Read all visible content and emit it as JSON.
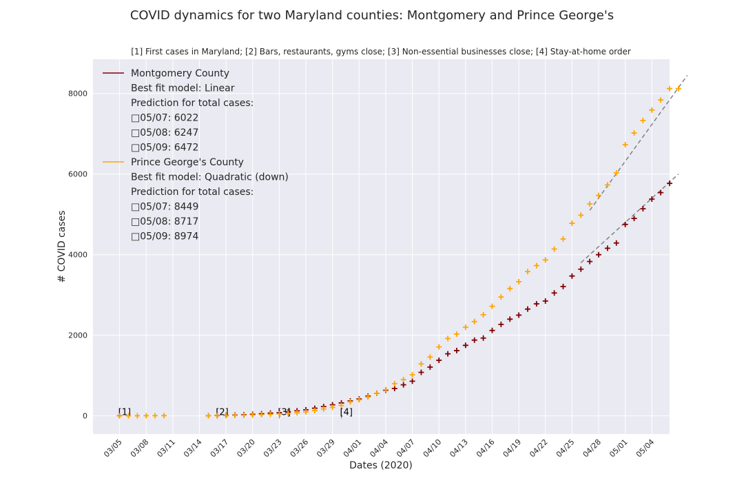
{
  "chart_data": {
    "type": "scatter",
    "title": "COVID dynamics for two Maryland counties: Montgomery and Prince George's",
    "subtitle": "[1] First cases in Maryland; [2] Bars, restaurants, gyms close; [3] Non-essential businesses close; [4] Stay-at-home order",
    "xlabel": "Dates (2020)",
    "ylabel": "# COVID cases",
    "x_ticks": [
      "03/05",
      "03/08",
      "03/11",
      "03/14",
      "03/17",
      "03/20",
      "03/23",
      "03/26",
      "03/29",
      "04/01",
      "04/04",
      "04/07",
      "04/10",
      "04/13",
      "04/16",
      "04/19",
      "04/22",
      "04/25",
      "04/28",
      "05/01",
      "05/04"
    ],
    "y_ticks": [
      0,
      2000,
      4000,
      6000,
      8000
    ],
    "xlim_day": [
      -3,
      62
    ],
    "ylim": [
      -450,
      8850
    ],
    "grid": true,
    "legend_position": "upper-left",
    "legend": [
      {
        "series": "Montgomery County",
        "lines": [
          "Best fit model: Linear",
          "Prediction for total cases:",
          "□05/07: 6022",
          "□05/08: 6247",
          "□05/09: 6472"
        ]
      },
      {
        "series": "Prince George's County",
        "lines": [
          "Best fit model: Quadratic (down)",
          "Prediction for total cases:",
          "□05/07: 8449",
          "□05/08: 8717",
          "□05/09: 8974"
        ]
      }
    ],
    "events": [
      {
        "label": "[1]",
        "date": "03/05",
        "y": 0
      },
      {
        "label": "[2]",
        "date": "03/16",
        "y": 0
      },
      {
        "label": "[3]",
        "date": "03/23",
        "y": 0
      },
      {
        "label": "[4]",
        "date": "03/30",
        "y": 0
      }
    ],
    "series": [
      {
        "name": "Montgomery County",
        "color": "#800000",
        "marker": "+",
        "dates": [
          "03/05",
          "03/15",
          "03/16",
          "03/17",
          "03/18",
          "03/19",
          "03/20",
          "03/21",
          "03/22",
          "03/23",
          "03/24",
          "03/25",
          "03/26",
          "03/27",
          "03/28",
          "03/29",
          "03/30",
          "03/31",
          "04/01",
          "04/02",
          "04/03",
          "04/04",
          "04/05",
          "04/06",
          "04/07",
          "04/08",
          "04/09",
          "04/10",
          "04/11",
          "04/12",
          "04/13",
          "04/14",
          "04/15",
          "04/16",
          "04/17",
          "04/18",
          "04/19",
          "04/20",
          "04/21",
          "04/22",
          "04/23",
          "04/24",
          "04/25",
          "04/26",
          "04/27",
          "04/28",
          "04/29",
          "04/30",
          "05/01",
          "05/02",
          "05/03",
          "05/04",
          "05/05",
          "05/06"
        ],
        "values": [
          3,
          5,
          10,
          15,
          20,
          28,
          40,
          52,
          68,
          80,
          100,
          125,
          150,
          190,
          230,
          275,
          320,
          370,
          420,
          490,
          560,
          635,
          680,
          770,
          860,
          1080,
          1210,
          1380,
          1540,
          1620,
          1750,
          1880,
          1930,
          2120,
          2270,
          2400,
          2500,
          2650,
          2780,
          2850,
          3050,
          3210,
          3470,
          3640,
          3830,
          4000,
          4160,
          4290,
          4750,
          4900,
          5140,
          5380,
          5540,
          5770
        ],
        "fit": {
          "from": "04/26",
          "to": "05/07",
          "values": [
            3800,
            6000
          ]
        }
      },
      {
        "name": "Prince George's County",
        "color": "#ffa500",
        "marker": "+",
        "dates": [
          "03/05",
          "03/06",
          "03/07",
          "03/08",
          "03/09",
          "03/10",
          "03/15",
          "03/16",
          "03/17",
          "03/18",
          "03/19",
          "03/20",
          "03/21",
          "03/22",
          "03/23",
          "03/24",
          "03/25",
          "03/26",
          "03/27",
          "03/28",
          "03/29",
          "03/30",
          "03/31",
          "04/01",
          "04/02",
          "04/03",
          "04/04",
          "04/05",
          "04/06",
          "04/07",
          "04/08",
          "04/09",
          "04/10",
          "04/11",
          "04/12",
          "04/13",
          "04/14",
          "04/15",
          "04/16",
          "04/17",
          "04/18",
          "04/19",
          "04/20",
          "04/21",
          "04/22",
          "04/23",
          "04/24",
          "04/25",
          "04/26",
          "04/27",
          "04/28",
          "04/29",
          "04/30",
          "05/01",
          "05/02",
          "05/03",
          "05/04",
          "05/05",
          "05/06",
          "05/07"
        ],
        "values": [
          0,
          2,
          3,
          4,
          5,
          6,
          4,
          6,
          8,
          12,
          16,
          22,
          30,
          40,
          50,
          60,
          75,
          100,
          130,
          170,
          210,
          260,
          350,
          400,
          470,
          560,
          650,
          800,
          900,
          1020,
          1290,
          1460,
          1710,
          1920,
          2030,
          2200,
          2340,
          2510,
          2720,
          2950,
          3160,
          3330,
          3580,
          3730,
          3870,
          4140,
          4390,
          4780,
          4980,
          5260,
          5470,
          5730,
          6030,
          6730,
          7020,
          7330,
          7590,
          7840,
          8120,
          8120
        ],
        "fit": {
          "from": "04/27",
          "to": "05/08",
          "values": [
            5100,
            8450
          ]
        }
      }
    ]
  }
}
